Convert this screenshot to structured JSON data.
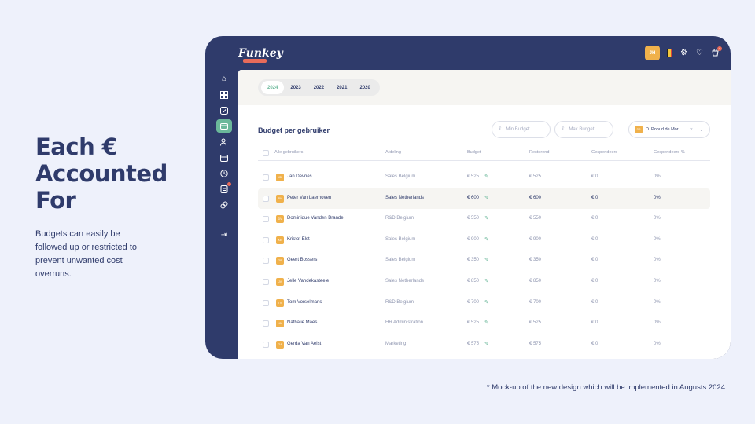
{
  "slide": {
    "headline_lines": [
      "Each €",
      "Accounted",
      "For"
    ],
    "subtext": "Budgets can easily be followed up or restricted to prevent unwanted cost overruns.",
    "footnote": "* Mock-up of the new design which will be implemented in Augusts 2024"
  },
  "app": {
    "logo": "Funkey",
    "user_initials": "JH",
    "notification_count": "4",
    "sidebar_badge": "4",
    "years": [
      "2024",
      "2023",
      "2022",
      "2021",
      "2020"
    ],
    "active_year": "2024",
    "table_title": "Budget per gebruiker",
    "min_budget_placeholder": "Min Budget",
    "max_budget_placeholder": "Max Budget",
    "currency": "€",
    "user_filter": {
      "initials": "DP",
      "label": "D. Pohud de Mor..."
    },
    "columns": [
      "Alle gebruikers",
      "Afdeling",
      "Budget",
      "Resterend",
      "Gespendeerd",
      "Gespendeerd %"
    ],
    "rows": [
      {
        "initials": "JD",
        "name": "Jan Devries",
        "dept": "Sales Belgium",
        "budget": "€ 525",
        "remaining": "€ 525",
        "spent": "€ 0",
        "spent_pct": "0%"
      },
      {
        "initials": "PV",
        "name": "Peter Van Laerhoven",
        "dept": "Sales Netherlands",
        "budget": "€ 600",
        "remaining": "€ 600",
        "spent": "€ 0",
        "spent_pct": "0%"
      },
      {
        "initials": "DV",
        "name": "Dominique Vanden Brande",
        "dept": "R&D Belgium",
        "budget": "€ 550",
        "remaining": "€ 550",
        "spent": "€ 0",
        "spent_pct": "0%"
      },
      {
        "initials": "KE",
        "name": "Kristof Elst",
        "dept": "Sales Belgium",
        "budget": "€ 900",
        "remaining": "€ 900",
        "spent": "€ 0",
        "spent_pct": "0%"
      },
      {
        "initials": "GB",
        "name": "Geert Bossers",
        "dept": "Sales Belgium",
        "budget": "€ 350",
        "remaining": "€ 350",
        "spent": "€ 0",
        "spent_pct": "0%"
      },
      {
        "initials": "JV",
        "name": "Jelle Vandekasteele",
        "dept": "Sales Netherlands",
        "budget": "€ 850",
        "remaining": "€ 850",
        "spent": "€ 0",
        "spent_pct": "0%"
      },
      {
        "initials": "TV",
        "name": "Tom Vorselmans",
        "dept": "R&D Belgium",
        "budget": "€ 700",
        "remaining": "€ 700",
        "spent": "€ 0",
        "spent_pct": "0%"
      },
      {
        "initials": "NM",
        "name": "Nathalie Maes",
        "dept": "HR Administration",
        "budget": "€ 525",
        "remaining": "€ 525",
        "spent": "€ 0",
        "spent_pct": "0%"
      },
      {
        "initials": "GA",
        "name": "Gerda Van Aelst",
        "dept": "Marketing",
        "budget": "€ 575",
        "remaining": "€ 575",
        "spent": "€ 0",
        "spent_pct": "0%"
      }
    ]
  },
  "colors": {
    "navy": "#2f3b6b",
    "accent_green": "#6bb89a",
    "accent_orange": "#f0b14b",
    "badge_red": "#e86b5a"
  }
}
